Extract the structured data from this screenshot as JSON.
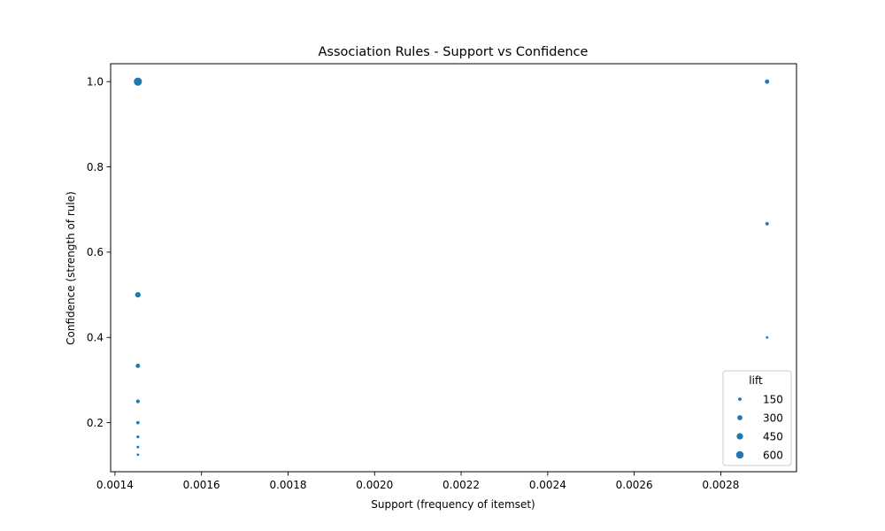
{
  "chart_data": {
    "type": "scatter",
    "title": "Association Rules - Support vs Confidence",
    "xlabel": "Support (frequency of itemset)",
    "ylabel": "Confidence (strength of rule)",
    "xlim": [
      0.00139,
      0.002975
    ],
    "ylim": [
      0.085,
      1.042
    ],
    "xticks": [
      "0.0014",
      "0.0016",
      "0.0018",
      "0.0020",
      "0.0022",
      "0.0024",
      "0.0026",
      "0.0028"
    ],
    "xtick_values": [
      0.0014,
      0.0016,
      0.0018,
      0.002,
      0.0022,
      0.0024,
      0.0026,
      0.0028
    ],
    "yticks": [
      "0.2",
      "0.4",
      "0.6",
      "0.8",
      "1.0"
    ],
    "ytick_values": [
      0.2,
      0.4,
      0.6,
      0.8,
      1.0
    ],
    "grid": false,
    "color": "#1f77b4",
    "points": [
      {
        "x": 0.001453,
        "y": 1.0,
        "lift": 688
      },
      {
        "x": 0.001453,
        "y": 0.5,
        "lift": 344
      },
      {
        "x": 0.001453,
        "y": 0.3333,
        "lift": 229
      },
      {
        "x": 0.001453,
        "y": 0.25,
        "lift": 172
      },
      {
        "x": 0.001453,
        "y": 0.2,
        "lift": 138
      },
      {
        "x": 0.001453,
        "y": 0.1667,
        "lift": 115
      },
      {
        "x": 0.001453,
        "y": 0.1429,
        "lift": 98
      },
      {
        "x": 0.001453,
        "y": 0.125,
        "lift": 86
      },
      {
        "x": 0.002907,
        "y": 1.0,
        "lift": 229
      },
      {
        "x": 0.002907,
        "y": 0.6667,
        "lift": 153
      },
      {
        "x": 0.002907,
        "y": 0.4,
        "lift": 92
      }
    ],
    "legend": {
      "title": "lift",
      "placement": "lower-right",
      "entries": [
        {
          "label": "150",
          "lift": 150
        },
        {
          "label": "300",
          "lift": 300
        },
        {
          "label": "450",
          "lift": 450
        },
        {
          "label": "600",
          "lift": 600
        }
      ]
    }
  }
}
